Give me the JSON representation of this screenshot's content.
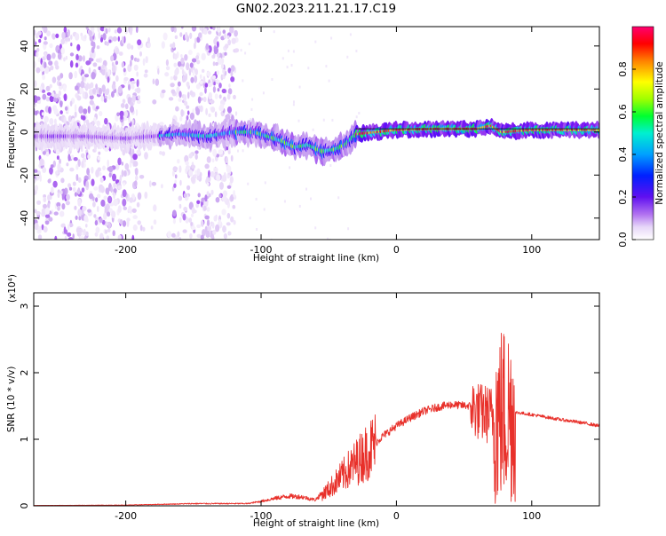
{
  "title": "GN02.2023.211.21.17.C19",
  "chart_data": [
    {
      "type": "heatmap",
      "xlabel": "Height of straight line (km)",
      "ylabel": "Frequency (Hz)",
      "xlim": [
        -268,
        150
      ],
      "ylim": [
        -50,
        49
      ],
      "xticks": [
        -200,
        -100,
        0,
        100
      ],
      "yticks": [
        -40,
        -20,
        0,
        20,
        40
      ],
      "colorbar": {
        "label": "Normalized spectral amplitude",
        "range": [
          0,
          1
        ],
        "ticks": [
          0.0,
          0.2,
          0.4,
          0.6,
          0.8
        ],
        "colormap": [
          "#ffffff",
          "#e8d8f8",
          "#c49af0",
          "#8a20f0",
          "#3000ff",
          "#0090ff",
          "#00f0f0",
          "#00ff40",
          "#90ff00",
          "#ffff00",
          "#ff8000",
          "#ff0000",
          "#ff0060"
        ]
      },
      "frequency_track": [
        {
          "x": -268,
          "y": -2
        },
        {
          "x": -230,
          "y": -2
        },
        {
          "x": -200,
          "y": -3
        },
        {
          "x": -180,
          "y": -2
        },
        {
          "x": -160,
          "y": -1
        },
        {
          "x": -140,
          "y": -2
        },
        {
          "x": -120,
          "y": 0
        },
        {
          "x": -105,
          "y": 0
        },
        {
          "x": -95,
          "y": -2
        },
        {
          "x": -85,
          "y": -4
        },
        {
          "x": -75,
          "y": -7
        },
        {
          "x": -65,
          "y": -6
        },
        {
          "x": -55,
          "y": -9
        },
        {
          "x": -45,
          "y": -8
        },
        {
          "x": -38,
          "y": -6
        },
        {
          "x": -30,
          "y": -1
        },
        {
          "x": -15,
          "y": 0
        },
        {
          "x": 0,
          "y": 1
        },
        {
          "x": 30,
          "y": 1.5
        },
        {
          "x": 60,
          "y": 1.5
        },
        {
          "x": 70,
          "y": 3
        },
        {
          "x": 78,
          "y": 0
        },
        {
          "x": 100,
          "y": 1
        },
        {
          "x": 150,
          "y": 1
        }
      ]
    },
    {
      "type": "line",
      "xlabel": "Height of straight line (km)",
      "ylabel": "SNR (10 * v/v)",
      "yscale_label": "(x10⁴)",
      "xlim": [
        -268,
        150
      ],
      "ylim": [
        0,
        3.2
      ],
      "xticks": [
        -200,
        -100,
        0,
        100
      ],
      "yticks": [
        0,
        1,
        2,
        3
      ],
      "color": "#e8302a",
      "envelope": [
        {
          "x": -268,
          "y": 0.005
        },
        {
          "x": -200,
          "y": 0.01
        },
        {
          "x": -150,
          "y": 0.03
        },
        {
          "x": -110,
          "y": 0.03
        },
        {
          "x": -100,
          "y": 0.06
        },
        {
          "x": -90,
          "y": 0.1
        },
        {
          "x": -80,
          "y": 0.13
        },
        {
          "x": -70,
          "y": 0.12
        },
        {
          "x": -60,
          "y": 0.08
        },
        {
          "x": -50,
          "y": 0.25
        },
        {
          "x": -40,
          "y": 0.45
        },
        {
          "x": -30,
          "y": 0.65
        },
        {
          "x": -20,
          "y": 0.85
        },
        {
          "x": -10,
          "y": 1.05
        },
        {
          "x": 0,
          "y": 1.2
        },
        {
          "x": 10,
          "y": 1.32
        },
        {
          "x": 20,
          "y": 1.42
        },
        {
          "x": 30,
          "y": 1.48
        },
        {
          "x": 40,
          "y": 1.52
        },
        {
          "x": 55,
          "y": 1.5
        },
        {
          "x": 62,
          "y": 1.4
        },
        {
          "x": 75,
          "y": 1.35
        },
        {
          "x": 82,
          "y": 1.4
        },
        {
          "x": 90,
          "y": 1.4
        },
        {
          "x": 100,
          "y": 1.37
        },
        {
          "x": 120,
          "y": 1.3
        },
        {
          "x": 140,
          "y": 1.24
        },
        {
          "x": 150,
          "y": 1.2
        }
      ]
    }
  ]
}
